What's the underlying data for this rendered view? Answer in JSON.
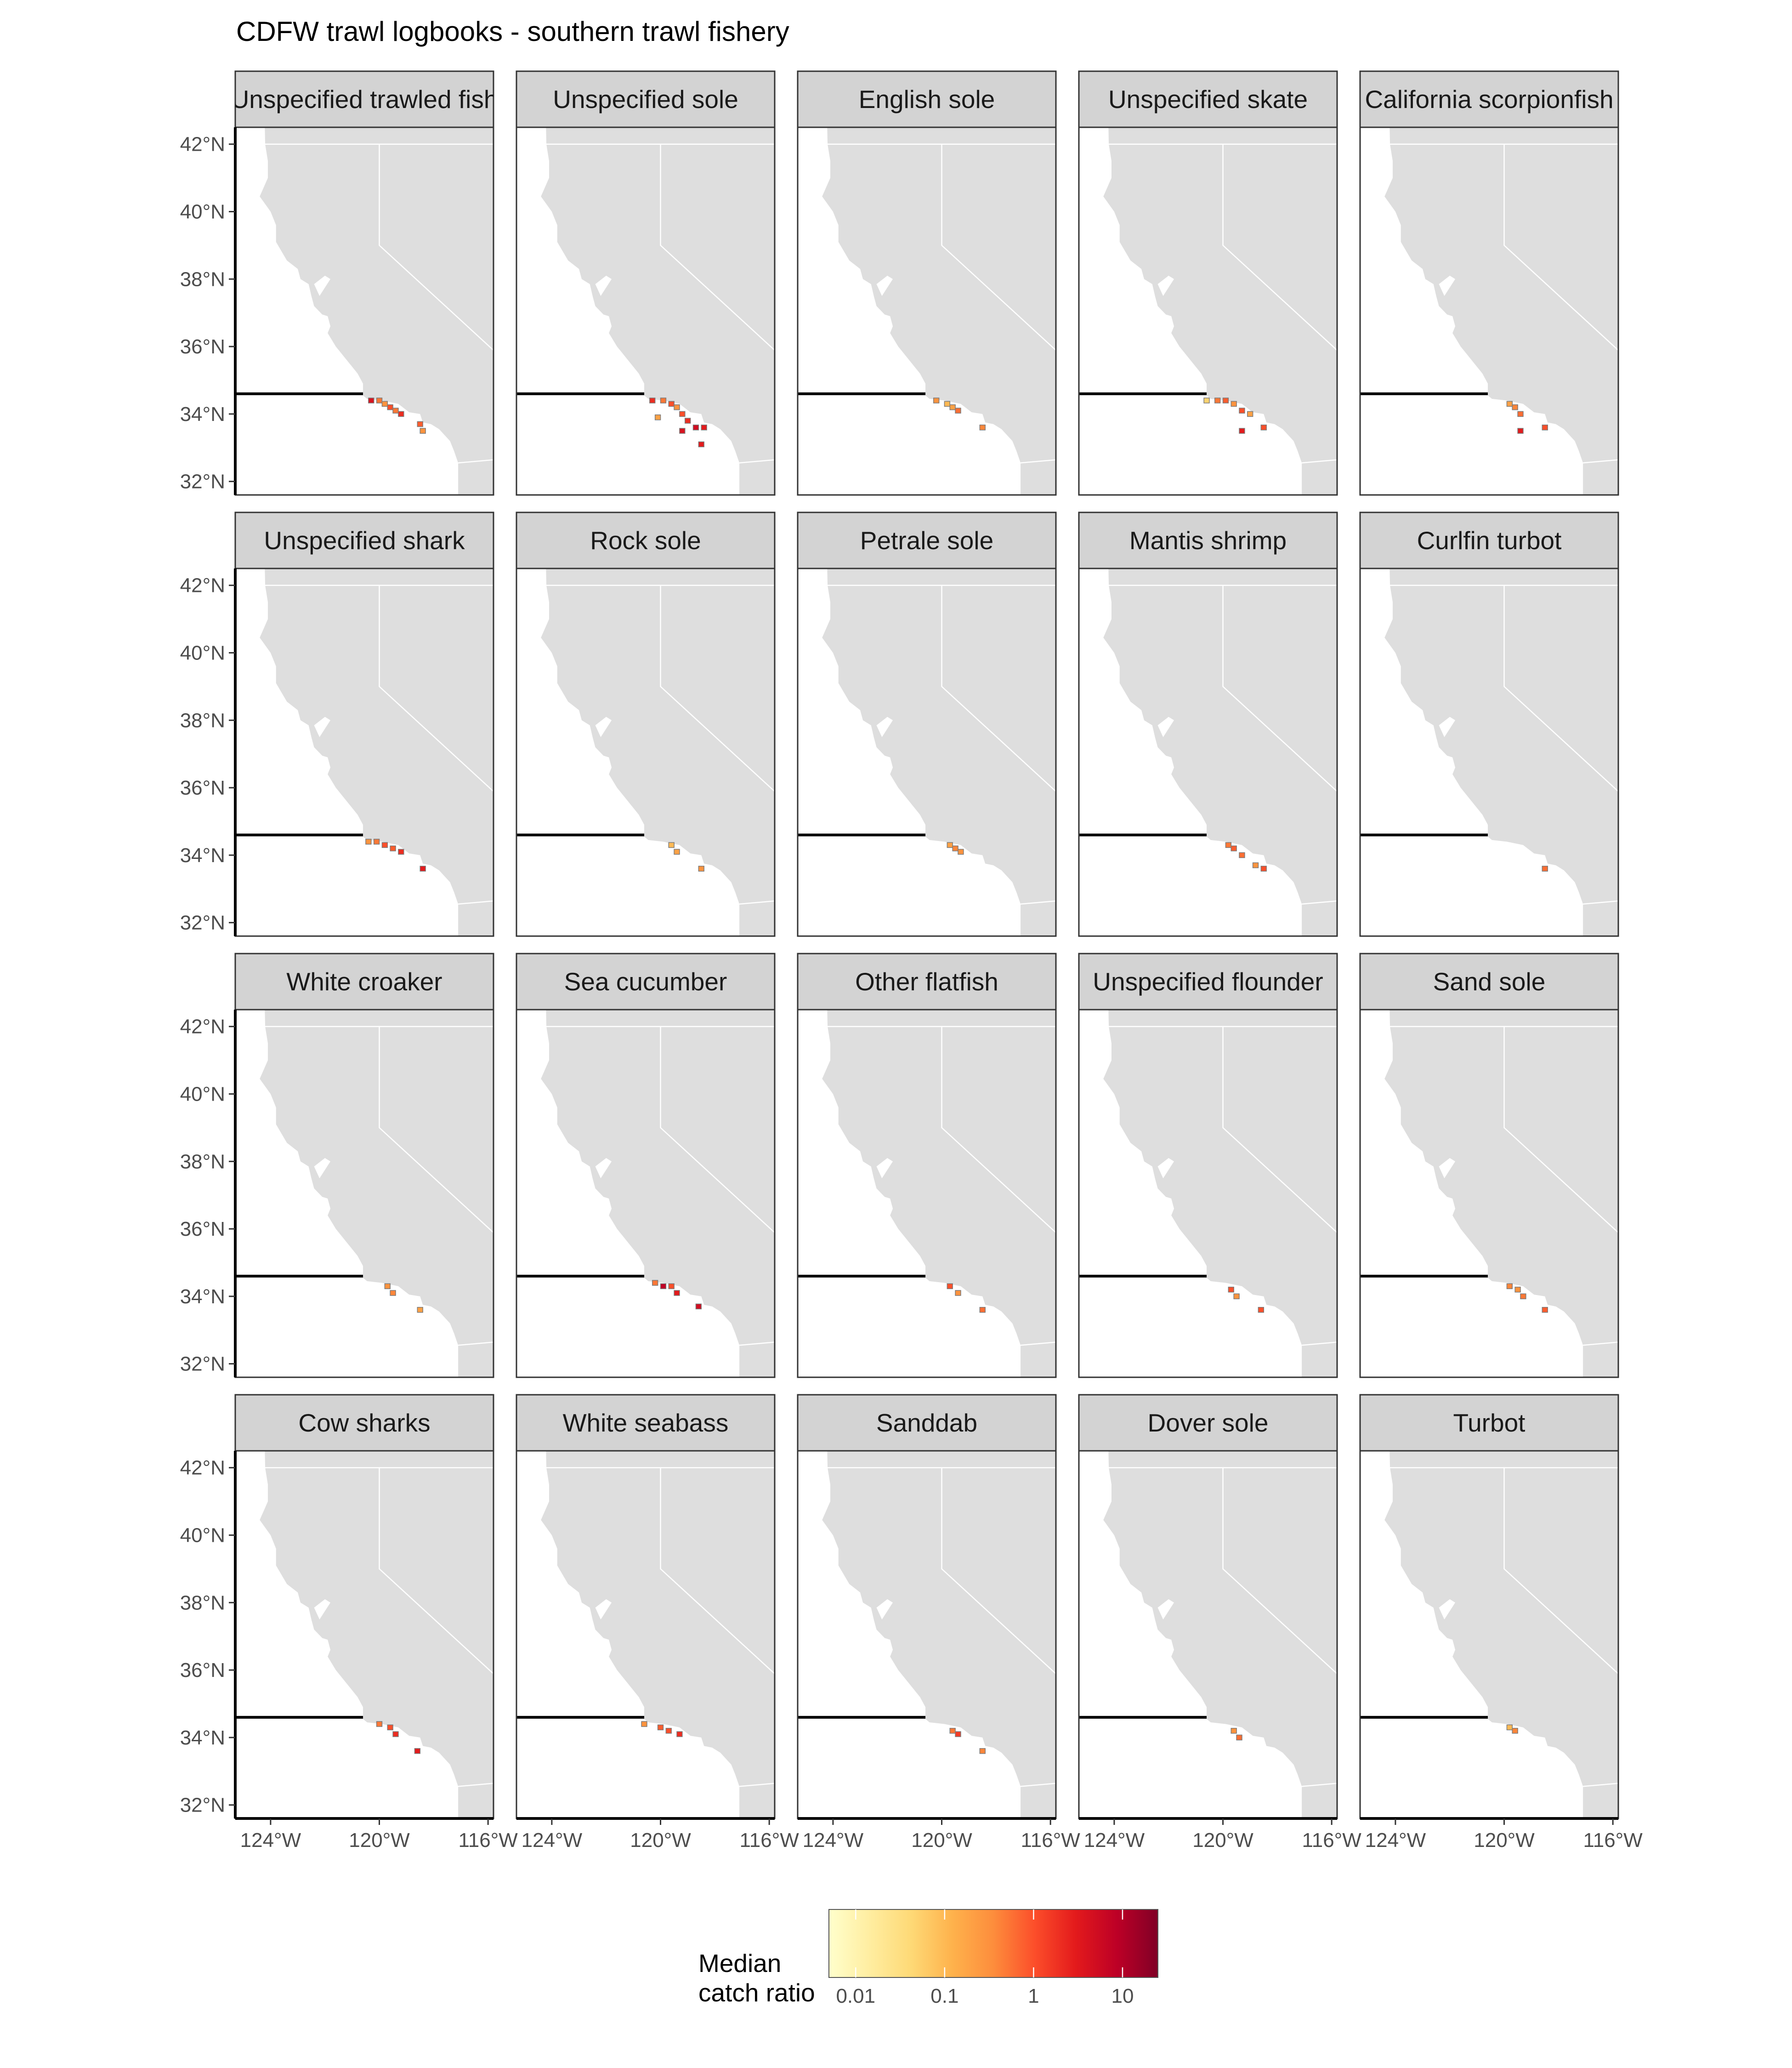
{
  "title": "CDFW trawl logbooks - southern trawl fishery",
  "colors": {
    "background": "#ffffff",
    "land": "#dedede",
    "state_border": "#ffffff",
    "strip_fill": "#d3d3d3",
    "frame": "#333333",
    "boundary_line": "#000000",
    "cell_outline": "#7a7a7a"
  },
  "x_axis": {
    "ticks": [
      -124,
      -120,
      -116
    ],
    "tick_labels": [
      "124°W",
      "120°W",
      "116°W"
    ],
    "range": [
      -125.3,
      -115.8
    ]
  },
  "y_axis": {
    "ticks": [
      32,
      34,
      36,
      38,
      40,
      42
    ],
    "tick_labels": [
      "32°N",
      "34°N",
      "36°N",
      "38°N",
      "40°N",
      "42°N"
    ],
    "range": [
      31.6,
      42.5
    ]
  },
  "boundary_line": {
    "lat": 34.6,
    "lon_range": [
      -125.3,
      -120.6
    ]
  },
  "chart_data": {
    "type": "heatmap",
    "facets": [
      {
        "label": "Unspecified trawled fish",
        "cells": [
          {
            "lon": -120.3,
            "lat": 34.4,
            "ratio": 4
          },
          {
            "lon": -120.0,
            "lat": 34.4,
            "ratio": 0.5
          },
          {
            "lon": -119.8,
            "lat": 34.3,
            "ratio": 0.3
          },
          {
            "lon": -119.6,
            "lat": 34.2,
            "ratio": 1
          },
          {
            "lon": -119.4,
            "lat": 34.1,
            "ratio": 0.5
          },
          {
            "lon": -119.2,
            "lat": 34.0,
            "ratio": 2
          },
          {
            "lon": -118.5,
            "lat": 33.7,
            "ratio": 0.8
          },
          {
            "lon": -118.4,
            "lat": 33.5,
            "ratio": 0.3
          }
        ]
      },
      {
        "label": "Unspecified sole",
        "cells": [
          {
            "lon": -120.3,
            "lat": 34.4,
            "ratio": 2
          },
          {
            "lon": -119.9,
            "lat": 34.4,
            "ratio": 0.5
          },
          {
            "lon": -119.6,
            "lat": 34.3,
            "ratio": 1
          },
          {
            "lon": -119.4,
            "lat": 34.2,
            "ratio": 0.3
          },
          {
            "lon": -119.2,
            "lat": 34.0,
            "ratio": 1
          },
          {
            "lon": -120.1,
            "lat": 33.9,
            "ratio": 0.2
          },
          {
            "lon": -119.0,
            "lat": 33.8,
            "ratio": 2
          },
          {
            "lon": -118.7,
            "lat": 33.6,
            "ratio": 5
          },
          {
            "lon": -119.2,
            "lat": 33.5,
            "ratio": 4
          },
          {
            "lon": -118.4,
            "lat": 33.6,
            "ratio": 3
          },
          {
            "lon": -118.5,
            "lat": 33.1,
            "ratio": 3
          }
        ]
      },
      {
        "label": "English sole",
        "cells": [
          {
            "lon": -120.2,
            "lat": 34.4,
            "ratio": 0.3
          },
          {
            "lon": -119.8,
            "lat": 34.3,
            "ratio": 0.1
          },
          {
            "lon": -119.6,
            "lat": 34.2,
            "ratio": 0.2
          },
          {
            "lon": -119.4,
            "lat": 34.1,
            "ratio": 0.6
          },
          {
            "lon": -118.5,
            "lat": 33.6,
            "ratio": 0.4
          }
        ]
      },
      {
        "label": "Unspecified skate",
        "cells": [
          {
            "lon": -120.6,
            "lat": 34.4,
            "ratio": 0.05
          },
          {
            "lon": -120.2,
            "lat": 34.4,
            "ratio": 0.5
          },
          {
            "lon": -119.9,
            "lat": 34.4,
            "ratio": 0.8
          },
          {
            "lon": -119.6,
            "lat": 34.3,
            "ratio": 0.3
          },
          {
            "lon": -119.3,
            "lat": 34.1,
            "ratio": 1
          },
          {
            "lon": -119.0,
            "lat": 34.0,
            "ratio": 0.2
          },
          {
            "lon": -118.5,
            "lat": 33.6,
            "ratio": 1
          },
          {
            "lon": -119.3,
            "lat": 33.5,
            "ratio": 3
          }
        ]
      },
      {
        "label": "California scorpionfish",
        "cells": [
          {
            "lon": -119.8,
            "lat": 34.3,
            "ratio": 0.2
          },
          {
            "lon": -119.6,
            "lat": 34.2,
            "ratio": 0.4
          },
          {
            "lon": -119.4,
            "lat": 34.0,
            "ratio": 0.6
          },
          {
            "lon": -119.4,
            "lat": 33.5,
            "ratio": 3
          },
          {
            "lon": -118.5,
            "lat": 33.6,
            "ratio": 1
          }
        ]
      },
      {
        "label": "Unspecified shark",
        "cells": [
          {
            "lon": -120.4,
            "lat": 34.4,
            "ratio": 0.3
          },
          {
            "lon": -120.1,
            "lat": 34.4,
            "ratio": 0.5
          },
          {
            "lon": -119.8,
            "lat": 34.3,
            "ratio": 1
          },
          {
            "lon": -119.5,
            "lat": 34.2,
            "ratio": 0.8
          },
          {
            "lon": -119.2,
            "lat": 34.1,
            "ratio": 2
          },
          {
            "lon": -118.4,
            "lat": 33.6,
            "ratio": 3
          }
        ]
      },
      {
        "label": "Rock sole",
        "cells": [
          {
            "lon": -119.6,
            "lat": 34.3,
            "ratio": 0.1
          },
          {
            "lon": -119.4,
            "lat": 34.1,
            "ratio": 0.2
          },
          {
            "lon": -118.5,
            "lat": 33.6,
            "ratio": 0.3
          }
        ]
      },
      {
        "label": "Petrale sole",
        "cells": [
          {
            "lon": -119.7,
            "lat": 34.3,
            "ratio": 0.2
          },
          {
            "lon": -119.5,
            "lat": 34.2,
            "ratio": 0.4
          },
          {
            "lon": -119.3,
            "lat": 34.1,
            "ratio": 0.3
          }
        ]
      },
      {
        "label": "Mantis shrimp",
        "cells": [
          {
            "lon": -119.8,
            "lat": 34.3,
            "ratio": 0.5
          },
          {
            "lon": -119.6,
            "lat": 34.2,
            "ratio": 0.8
          },
          {
            "lon": -119.3,
            "lat": 34.0,
            "ratio": 0.6
          },
          {
            "lon": -118.8,
            "lat": 33.7,
            "ratio": 0.3
          },
          {
            "lon": -118.5,
            "lat": 33.6,
            "ratio": 1
          }
        ]
      },
      {
        "label": "Curlfin turbot",
        "cells": [
          {
            "lon": -118.5,
            "lat": 33.6,
            "ratio": 0.6
          }
        ]
      },
      {
        "label": "White croaker",
        "cells": [
          {
            "lon": -119.7,
            "lat": 34.3,
            "ratio": 0.3
          },
          {
            "lon": -119.5,
            "lat": 34.1,
            "ratio": 0.4
          },
          {
            "lon": -118.5,
            "lat": 33.6,
            "ratio": 0.2
          }
        ]
      },
      {
        "label": "Sea cucumber",
        "cells": [
          {
            "lon": -120.2,
            "lat": 34.4,
            "ratio": 0.5
          },
          {
            "lon": -119.9,
            "lat": 34.3,
            "ratio": 8
          },
          {
            "lon": -119.6,
            "lat": 34.3,
            "ratio": 1
          },
          {
            "lon": -119.4,
            "lat": 34.1,
            "ratio": 3
          },
          {
            "lon": -118.6,
            "lat": 33.7,
            "ratio": 5
          }
        ]
      },
      {
        "label": "Other flatfish",
        "cells": [
          {
            "lon": -119.7,
            "lat": 34.3,
            "ratio": 1
          },
          {
            "lon": -119.4,
            "lat": 34.1,
            "ratio": 0.3
          },
          {
            "lon": -118.5,
            "lat": 33.6,
            "ratio": 0.6
          }
        ]
      },
      {
        "label": "Unspecified flounder",
        "cells": [
          {
            "lon": -119.7,
            "lat": 34.2,
            "ratio": 1
          },
          {
            "lon": -119.5,
            "lat": 34.0,
            "ratio": 0.3
          },
          {
            "lon": -118.6,
            "lat": 33.6,
            "ratio": 1
          }
        ]
      },
      {
        "label": "Sand sole",
        "cells": [
          {
            "lon": -119.8,
            "lat": 34.3,
            "ratio": 0.4
          },
          {
            "lon": -119.5,
            "lat": 34.2,
            "ratio": 0.3
          },
          {
            "lon": -119.3,
            "lat": 34.0,
            "ratio": 0.5
          },
          {
            "lon": -118.5,
            "lat": 33.6,
            "ratio": 0.8
          }
        ]
      },
      {
        "label": "Cow sharks",
        "cells": [
          {
            "lon": -120.0,
            "lat": 34.4,
            "ratio": 0.5
          },
          {
            "lon": -119.6,
            "lat": 34.3,
            "ratio": 1
          },
          {
            "lon": -119.4,
            "lat": 34.1,
            "ratio": 2
          },
          {
            "lon": -118.6,
            "lat": 33.6,
            "ratio": 3
          }
        ]
      },
      {
        "label": "White seabass",
        "cells": [
          {
            "lon": -120.6,
            "lat": 34.4,
            "ratio": 0.3
          },
          {
            "lon": -120.0,
            "lat": 34.3,
            "ratio": 0.8
          },
          {
            "lon": -119.7,
            "lat": 34.2,
            "ratio": 1
          },
          {
            "lon": -119.3,
            "lat": 34.1,
            "ratio": 2
          }
        ]
      },
      {
        "label": "Sanddab",
        "cells": [
          {
            "lon": -119.6,
            "lat": 34.2,
            "ratio": 0.5
          },
          {
            "lon": -119.4,
            "lat": 34.1,
            "ratio": 1.5
          },
          {
            "lon": -118.5,
            "lat": 33.6,
            "ratio": 0.4
          }
        ]
      },
      {
        "label": "Dover sole",
        "cells": [
          {
            "lon": -119.6,
            "lat": 34.2,
            "ratio": 0.3
          },
          {
            "lon": -119.4,
            "lat": 34.0,
            "ratio": 0.6
          }
        ]
      },
      {
        "label": "Turbot",
        "cells": [
          {
            "lon": -119.8,
            "lat": 34.3,
            "ratio": 0.1
          },
          {
            "lon": -119.6,
            "lat": 34.2,
            "ratio": 0.4
          }
        ]
      }
    ],
    "legend": {
      "title_lines": [
        "Median",
        "catch ratio"
      ],
      "breaks": [
        0.01,
        0.1,
        1,
        10
      ],
      "break_labels": [
        "0.01",
        "0.1",
        "1",
        "10"
      ],
      "range": [
        0.005,
        25
      ],
      "scale": "log",
      "palette": [
        "#ffffcc",
        "#ffeda0",
        "#fed976",
        "#feb24c",
        "#fd8d3c",
        "#fc4e2a",
        "#e31a1c",
        "#bd0026",
        "#800026"
      ],
      "placement": "bottom"
    }
  }
}
